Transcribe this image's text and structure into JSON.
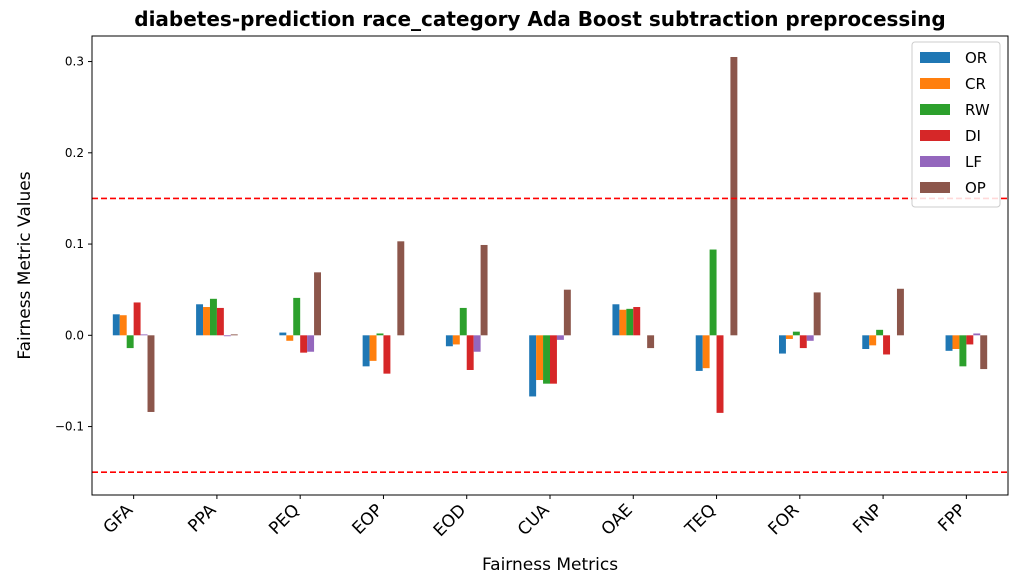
{
  "chart_data": {
    "type": "bar",
    "title": "diabetes-prediction race_category Ada Boost subtraction preprocessing",
    "xlabel": "Fairness Metrics",
    "ylabel": "Fairness Metric Values",
    "ylim": [
      -0.175,
      0.328
    ],
    "yticks": [
      -0.1,
      0.0,
      0.1,
      0.2,
      0.3
    ],
    "ytick_labels": [
      "−0.1",
      "0.0",
      "0.1",
      "0.2",
      "0.3"
    ],
    "categories": [
      "GFA",
      "PPA",
      "PEQ",
      "EOP",
      "EOD",
      "CUA",
      "OAE",
      "TEQ",
      "FOR",
      "FNP",
      "FPP"
    ],
    "series": [
      {
        "name": "OR",
        "color": "#1f77b4",
        "values": [
          0.023,
          0.034,
          0.003,
          -0.034,
          -0.012,
          -0.067,
          0.034,
          -0.039,
          -0.02,
          -0.015,
          -0.017
        ]
      },
      {
        "name": "CR",
        "color": "#ff7f0e",
        "values": [
          0.022,
          0.031,
          -0.006,
          -0.028,
          -0.01,
          -0.049,
          0.028,
          -0.036,
          -0.004,
          -0.011,
          -0.015
        ]
      },
      {
        "name": "RW",
        "color": "#2ca02c",
        "values": [
          -0.014,
          0.04,
          0.041,
          0.002,
          0.03,
          -0.053,
          0.029,
          0.094,
          0.004,
          0.006,
          -0.034
        ]
      },
      {
        "name": "DI",
        "color": "#d62728",
        "values": [
          0.036,
          0.03,
          -0.019,
          -0.042,
          -0.038,
          -0.053,
          0.031,
          -0.085,
          -0.014,
          -0.021,
          -0.01
        ]
      },
      {
        "name": "LF",
        "color": "#9467bd",
        "values": [
          0.001,
          -0.001,
          -0.018,
          0.0,
          -0.018,
          -0.005,
          0.0,
          0.0,
          -0.006,
          0.0,
          0.002
        ]
      },
      {
        "name": "OP",
        "color": "#8c564b",
        "values": [
          -0.084,
          0.001,
          0.069,
          0.103,
          0.099,
          0.05,
          -0.014,
          0.305,
          0.047,
          0.051,
          -0.037
        ]
      }
    ],
    "threshold_lines": [
      0.15,
      -0.15
    ],
    "threshold_color": "#ff0000",
    "legend_position": "top-right",
    "grid": false
  }
}
